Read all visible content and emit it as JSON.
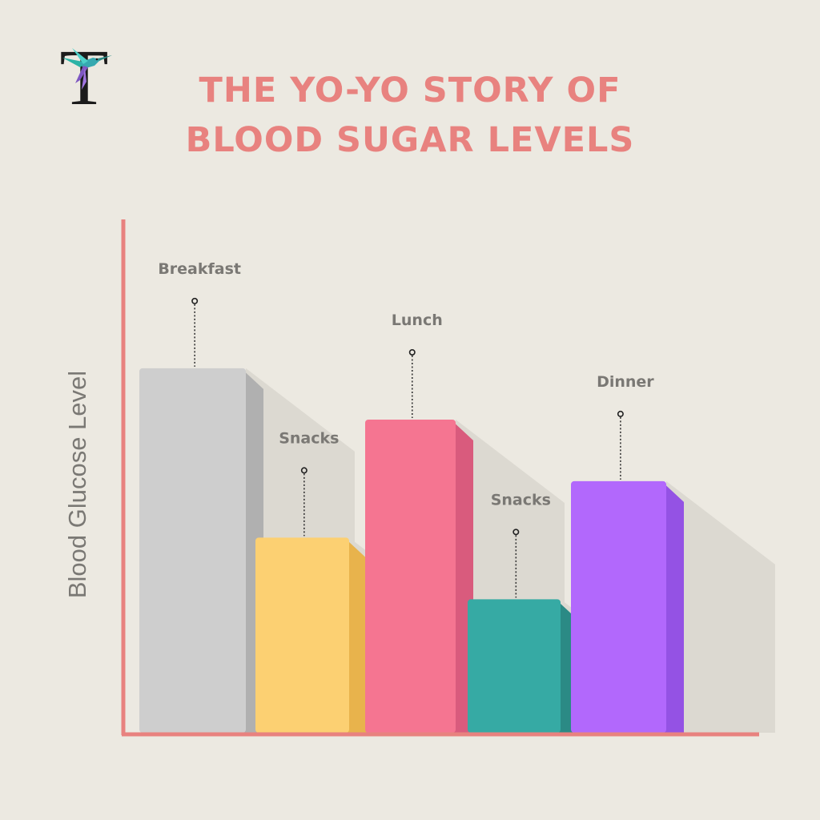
{
  "title": {
    "line1": "THE YO-YO STORY OF",
    "line2": "BLOOD SUGAR LEVELS"
  },
  "logo": {
    "letter": "T",
    "icon": "hummingbird-icon",
    "colors": [
      "#2bb3a6",
      "#7e57c2",
      "#4dd0c8"
    ]
  },
  "colors": {
    "background": "#ece9e1",
    "title": "#e8827f",
    "axis": "#e8827f",
    "label": "#7a7874",
    "shadow": "#dcd9d1"
  },
  "chart_data": {
    "type": "bar",
    "title": "THE YO-YO STORY OF BLOOD SUGAR LEVELS",
    "xlabel": "",
    "ylabel": "Blood Glucose Level",
    "categories": [
      "Breakfast",
      "Snacks",
      "Lunch",
      "Snacks",
      "Dinner"
    ],
    "values": [
      71,
      38,
      61,
      26,
      49
    ],
    "ylim": [
      0,
      100
    ],
    "grid": false,
    "legend": "none",
    "tick_labels": false,
    "bar_colors": [
      {
        "front": "#cecece",
        "side": "#b0b0b0"
      },
      {
        "front": "#fcd072",
        "side": "#e8b34c"
      },
      {
        "front": "#f57591",
        "side": "#d95b7d"
      },
      {
        "front": "#36aaa4",
        "side": "#2b8a85"
      },
      {
        "front": "#b268fc",
        "side": "#9452e4"
      }
    ]
  }
}
